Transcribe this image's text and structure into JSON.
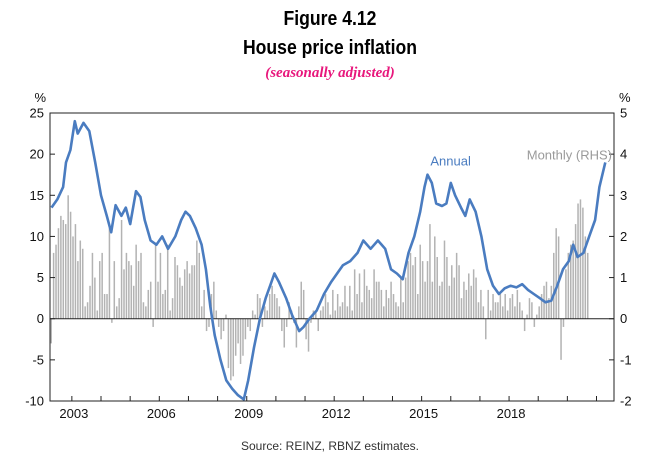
{
  "figure": {
    "title_line1": "Figure 4.12",
    "title_line2": "House price inflation",
    "subtitle": "(seasonally adjusted)",
    "source": "Source: REINZ, RBNZ estimates."
  },
  "colors": {
    "annual_line": "#4a7cc0",
    "monthly_bars": "#b3b3b3",
    "subtitle": "#e8177c"
  },
  "chart_data": {
    "type": "bar+line",
    "x_start": 2002.25,
    "x_end": 2021.6,
    "x_ticks": [
      "2003",
      "2006",
      "2009",
      "2012",
      "2015",
      "2018"
    ],
    "x_tick_values": [
      2003,
      2006,
      2009,
      2012,
      2015,
      2018
    ],
    "y_left": {
      "unit": "%",
      "min": -10,
      "max": 25,
      "ticks": [
        "25",
        "20",
        "15",
        "10",
        "5",
        "0",
        "-5",
        "-10"
      ]
    },
    "y_right": {
      "unit": "%",
      "min": -2,
      "max": 5,
      "ticks": [
        "5",
        "4",
        "3",
        "2",
        "1",
        "0",
        "-1",
        "-2"
      ]
    },
    "series": [
      {
        "name": "Annual",
        "axis": "left",
        "label": "Annual",
        "points": [
          [
            2002.3,
            13.5
          ],
          [
            2002.5,
            14.5
          ],
          [
            2002.7,
            16
          ],
          [
            2002.8,
            19
          ],
          [
            2002.95,
            20.5
          ],
          [
            2003.1,
            24
          ],
          [
            2003.2,
            22.5
          ],
          [
            2003.4,
            23.8
          ],
          [
            2003.6,
            22.8
          ],
          [
            2003.8,
            19
          ],
          [
            2004.0,
            15
          ],
          [
            2004.2,
            12.5
          ],
          [
            2004.35,
            10.5
          ],
          [
            2004.5,
            13.8
          ],
          [
            2004.7,
            12.5
          ],
          [
            2004.85,
            13.5
          ],
          [
            2005.0,
            11.5
          ],
          [
            2005.2,
            15.5
          ],
          [
            2005.35,
            14.8
          ],
          [
            2005.5,
            12
          ],
          [
            2005.7,
            9.5
          ],
          [
            2005.9,
            9
          ],
          [
            2006.1,
            10
          ],
          [
            2006.3,
            8.5
          ],
          [
            2006.55,
            10
          ],
          [
            2006.75,
            12
          ],
          [
            2006.9,
            13
          ],
          [
            2007.05,
            12.5
          ],
          [
            2007.25,
            11
          ],
          [
            2007.45,
            9
          ],
          [
            2007.6,
            6
          ],
          [
            2007.75,
            1.5
          ],
          [
            2007.9,
            -2
          ],
          [
            2008.1,
            -5
          ],
          [
            2008.3,
            -7.5
          ],
          [
            2008.5,
            -8.5
          ],
          [
            2008.7,
            -9.3
          ],
          [
            2008.9,
            -9.8
          ],
          [
            2009.05,
            -7.5
          ],
          [
            2009.25,
            -3.5
          ],
          [
            2009.45,
            0
          ],
          [
            2009.65,
            2.5
          ],
          [
            2009.8,
            4
          ],
          [
            2009.95,
            5.5
          ],
          [
            2010.1,
            4.5
          ],
          [
            2010.35,
            2.5
          ],
          [
            2010.55,
            0.5
          ],
          [
            2010.8,
            -1.5
          ],
          [
            2010.95,
            -1
          ],
          [
            2011.15,
            0
          ],
          [
            2011.4,
            1
          ],
          [
            2011.65,
            3
          ],
          [
            2011.9,
            4.5
          ],
          [
            2012.1,
            5.5
          ],
          [
            2012.3,
            6.5
          ],
          [
            2012.55,
            7
          ],
          [
            2012.8,
            8
          ],
          [
            2013.0,
            9.5
          ],
          [
            2013.25,
            8.5
          ],
          [
            2013.5,
            9.5
          ],
          [
            2013.75,
            8.5
          ],
          [
            2013.95,
            6
          ],
          [
            2014.15,
            5.5
          ],
          [
            2014.35,
            4.8
          ],
          [
            2014.55,
            8
          ],
          [
            2014.75,
            10
          ],
          [
            2014.95,
            13
          ],
          [
            2015.1,
            16
          ],
          [
            2015.2,
            17.5
          ],
          [
            2015.35,
            16.5
          ],
          [
            2015.5,
            14
          ],
          [
            2015.7,
            13.7
          ],
          [
            2015.85,
            14
          ],
          [
            2016.0,
            16.5
          ],
          [
            2016.15,
            15
          ],
          [
            2016.35,
            13.5
          ],
          [
            2016.5,
            12.5
          ],
          [
            2016.65,
            14.5
          ],
          [
            2016.85,
            13
          ],
          [
            2017.05,
            10
          ],
          [
            2017.25,
            6
          ],
          [
            2017.45,
            4
          ],
          [
            2017.65,
            3
          ],
          [
            2017.85,
            3.7
          ],
          [
            2018.05,
            4
          ],
          [
            2018.25,
            3.8
          ],
          [
            2018.45,
            4.2
          ],
          [
            2018.65,
            3.5
          ],
          [
            2018.85,
            3
          ],
          [
            2019.05,
            2.5
          ],
          [
            2019.25,
            2
          ],
          [
            2019.45,
            2.2
          ],
          [
            2019.65,
            4
          ],
          [
            2019.85,
            6
          ],
          [
            2020.05,
            7
          ],
          [
            2020.2,
            9
          ],
          [
            2020.35,
            7.5
          ],
          [
            2020.55,
            8
          ],
          [
            2020.75,
            10
          ],
          [
            2020.95,
            12
          ],
          [
            2021.1,
            16
          ],
          [
            2021.3,
            19
          ]
        ]
      },
      {
        "name": "Monthly (RHS)",
        "axis": "right",
        "label": "Monthly (RHS)",
        "bar_dx": 0.0833,
        "x_start": 2002.29,
        "values": [
          -0.6,
          1.6,
          1.8,
          2.2,
          2.5,
          2.4,
          2.3,
          3.0,
          2.6,
          2.0,
          2.3,
          1.4,
          1.9,
          1.7,
          0.3,
          0.4,
          0.8,
          1.6,
          1.0,
          0.2,
          1.4,
          1.6,
          0.6,
          0.6,
          2.2,
          -0.1,
          1.4,
          0.3,
          0.5,
          2.4,
          1.2,
          1.6,
          1.4,
          1.3,
          0.8,
          1.8,
          1.4,
          1.6,
          0.4,
          0.3,
          0.7,
          0.9,
          -0.2,
          1.8,
          0.9,
          1.6,
          0.6,
          0.7,
          1.8,
          0.2,
          0.5,
          1.5,
          1.3,
          1.0,
          0.8,
          1.2,
          1.4,
          1.1,
          1.3,
          1.3,
          1.9,
          1.6,
          0.3,
          0.7,
          -0.3,
          -0.2,
          0.6,
          0.9,
          0.2,
          -0.2,
          -0.5,
          -0.3,
          0.1,
          -1.2,
          -1.5,
          -1.4,
          -0.9,
          -0.6,
          -1.1,
          -0.9,
          -0.5,
          -0.2,
          -0.3,
          0.2,
          0.1,
          0.6,
          0.5,
          -0.2,
          0.3,
          0.2,
          0.6,
          0.8,
          0.6,
          0.5,
          0.3,
          -0.3,
          -0.7,
          -0.2,
          0.4,
          0.2,
          -0.1,
          -0.7,
          0.3,
          0.9,
          0.7,
          -0.5,
          -0.8,
          -0.1,
          0.2,
          0.2,
          -0.3,
          0.2,
          0.3,
          0.6,
          0.4,
          0.1,
          0.7,
          0.2,
          0.6,
          0.3,
          0.4,
          0.8,
          0.3,
          0.8,
          0.2,
          1.2,
          0.6,
          1.1,
          0.4,
          1.2,
          0.8,
          0.7,
          0.5,
          1.2,
          0.9,
          0.9,
          0.7,
          0.3,
          0.7,
          0.5,
          0.9,
          0.6,
          0.4,
          0.3,
          1.0,
          0.4,
          1.0,
          1.4,
          1.6,
          1.3,
          1.5,
          0.6,
          1.8,
          1.4,
          0.9,
          1.4,
          2.3,
          0.9,
          2.0,
          1.5,
          0.8,
          0.9,
          1.9,
          1.5,
          0.8,
          1.3,
          1.0,
          1.6,
          1.3,
          0.5,
          0.9,
          0.7,
          1.1,
          0.8,
          1.2,
          1.0,
          0.4,
          0.7,
          0.3,
          -0.5,
          0.7,
          0.2,
          0.6,
          0.4,
          0.4,
          0.6,
          0.3,
          0.6,
          0.2,
          0.5,
          0.6,
          0.3,
          0.7,
          0.4,
          0.2,
          -0.3,
          0.1,
          0.5,
          0.4,
          -0.2,
          0.1,
          0.3,
          0.6,
          0.8,
          0.9,
          0.5,
          0.8,
          1.6,
          2.2,
          2.0,
          -1.0,
          -0.2,
          1.2,
          1.6,
          1.8,
          1.9,
          2.3,
          2.8,
          2.9,
          2.7,
          2.0,
          1.6
        ]
      }
    ]
  }
}
